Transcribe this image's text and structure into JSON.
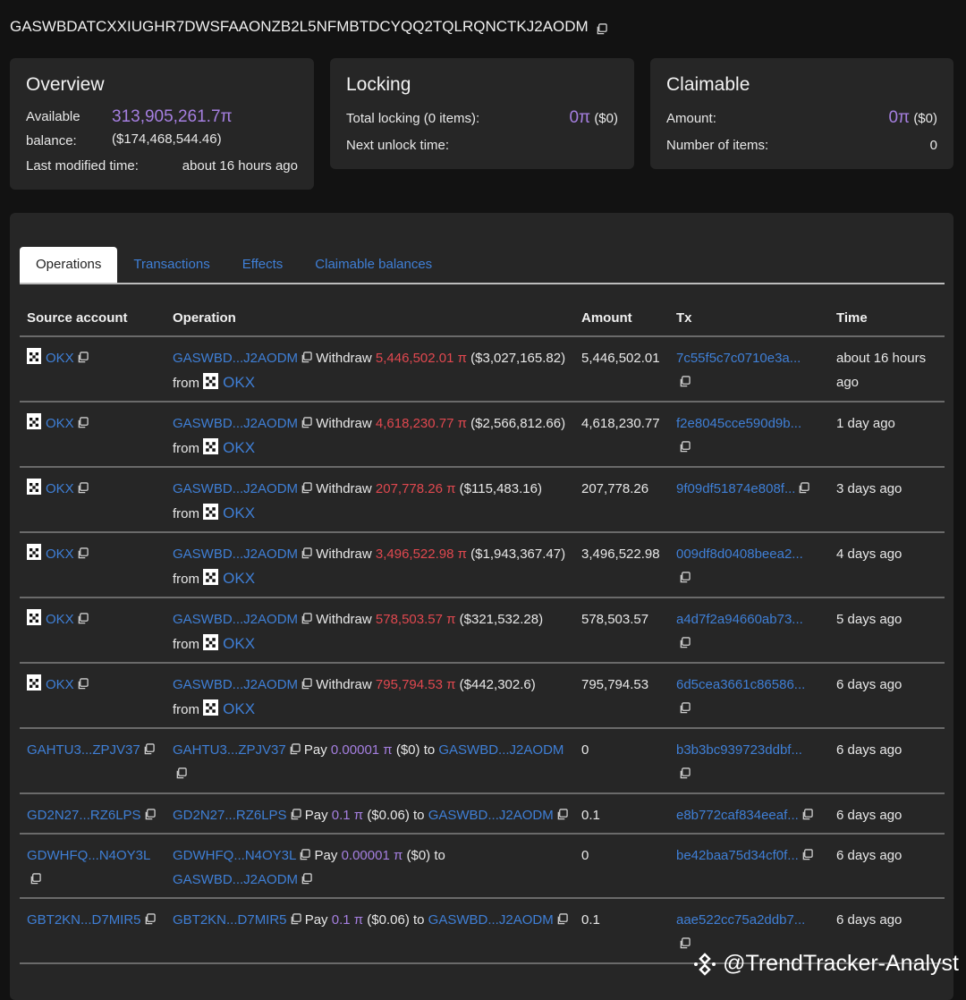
{
  "account_id": "GASWBDATCXXIUGHR7DWSFAAONZB2L5NFMBTDCYQQ2TQLRQNCTKJ2AODM",
  "overview": {
    "title": "Overview",
    "balance_label": "Available balance:",
    "balance": "313,905,261.7π",
    "balance_usd": "($174,468,544.46)",
    "modified_label": "Last modified time:",
    "modified": "about 16 hours ago"
  },
  "locking": {
    "title": "Locking",
    "total_label": "Total locking (0 items):",
    "total": "0π",
    "total_usd": "($0)",
    "next_label": "Next unlock time:"
  },
  "claimable": {
    "title": "Claimable",
    "amount_label": "Amount:",
    "amount": "0π",
    "amount_usd": "($0)",
    "items_label": "Number of items:",
    "items": "0"
  },
  "tabs": [
    "Operations",
    "Transactions",
    "Effects",
    "Claimable balances"
  ],
  "active_tab": "Operations",
  "columns": [
    "Source account",
    "Operation",
    "Amount",
    "Tx",
    "Time"
  ],
  "rows": [
    {
      "source": "OKX",
      "source_icon": "okx",
      "op_from": "GASWBD...J2AODM",
      "verb": "Withdraw",
      "amt": "5,446,502.01 π",
      "usd": "($3,027,165.82)",
      "joiner": "from",
      "party": "OKX",
      "amount": "5,446,502.01",
      "tx": "7c55f5c7c0710e3a...",
      "time": "about 16 hours ago"
    },
    {
      "source": "OKX",
      "source_icon": "okx",
      "op_from": "GASWBD...J2AODM",
      "verb": "Withdraw",
      "amt": "4,618,230.77 π",
      "usd": "($2,566,812.66)",
      "joiner": "from",
      "party": "OKX",
      "amount": "4,618,230.77",
      "tx": "f2e8045cce590d9b...",
      "time": "1 day ago"
    },
    {
      "source": "OKX",
      "source_icon": "okx",
      "op_from": "GASWBD...J2AODM",
      "verb": "Withdraw",
      "amt": "207,778.26 π",
      "usd": "($115,483.16)",
      "joiner": "from",
      "party": "OKX",
      "amount": "207,778.26",
      "tx": "9f09df51874e808f...",
      "time": "3 days ago"
    },
    {
      "source": "OKX",
      "source_icon": "okx",
      "op_from": "GASWBD...J2AODM",
      "verb": "Withdraw",
      "amt": "3,496,522.98 π",
      "usd": "($1,943,367.47)",
      "joiner": "from",
      "party": "OKX",
      "amount": "3,496,522.98",
      "tx": "009df8d0408beea2...",
      "time": "4 days ago"
    },
    {
      "source": "OKX",
      "source_icon": "okx",
      "op_from": "GASWBD...J2AODM",
      "verb": "Withdraw",
      "amt": "578,503.57 π",
      "usd": "($321,532.28)",
      "joiner": "from",
      "party": "OKX",
      "amount": "578,503.57",
      "tx": "a4d7f2a94660ab73...",
      "time": "5 days ago"
    },
    {
      "source": "OKX",
      "source_icon": "okx",
      "op_from": "GASWBD...J2AODM",
      "verb": "Withdraw",
      "amt": "795,794.53 π",
      "usd": "($442,302.6)",
      "joiner": "from",
      "party": "OKX",
      "amount": "795,794.53",
      "tx": "6d5cea3661c86586...",
      "time": "6 days ago"
    },
    {
      "source": "GAHTU3...ZPJV37",
      "op_from": "GAHTU3...ZPJV37",
      "verb": "Pay",
      "amt": "0.00001 π",
      "usd": "($0)",
      "joiner": "to",
      "party": "GASWBD...J2AODM",
      "amount": "0",
      "tx": "b3b3bc939723ddbf...",
      "time": "6 days ago"
    },
    {
      "source": "GD2N27...RZ6LPS",
      "op_from": "GD2N27...RZ6LPS",
      "verb": "Pay",
      "amt": "0.1 π",
      "usd": "($0.06)",
      "joiner": "to",
      "party": "GASWBD...J2AODM",
      "amount": "0.1",
      "tx": "e8b772caf834eeaf...",
      "time": "6 days ago"
    },
    {
      "source": "GDWHFQ...N4OY3L",
      "op_from": "GDWHFQ...N4OY3L",
      "verb": "Pay",
      "amt": "0.00001 π",
      "usd": "($0)",
      "joiner": "to",
      "party": "GASWBD...J2AODM",
      "amount": "0",
      "tx": "be42baa75d34cf0f...",
      "time": "6 days ago"
    },
    {
      "source": "GBT2KN...D7MIR5",
      "op_from": "GBT2KN...D7MIR5",
      "verb": "Pay",
      "amt": "0.1 π",
      "usd": "($0.06)",
      "joiner": "to",
      "party": "GASWBD...J2AODM",
      "amount": "0.1",
      "tx": "aae522cc75a2ddb7...",
      "time": "6 days ago"
    }
  ],
  "watermark": "@TrendTracker-Analyst",
  "colors": {
    "link": "#3f7fd6",
    "purple": "#a57fe0",
    "withdraw": "#e0484f",
    "bg": "#121212",
    "panel": "#262626"
  }
}
